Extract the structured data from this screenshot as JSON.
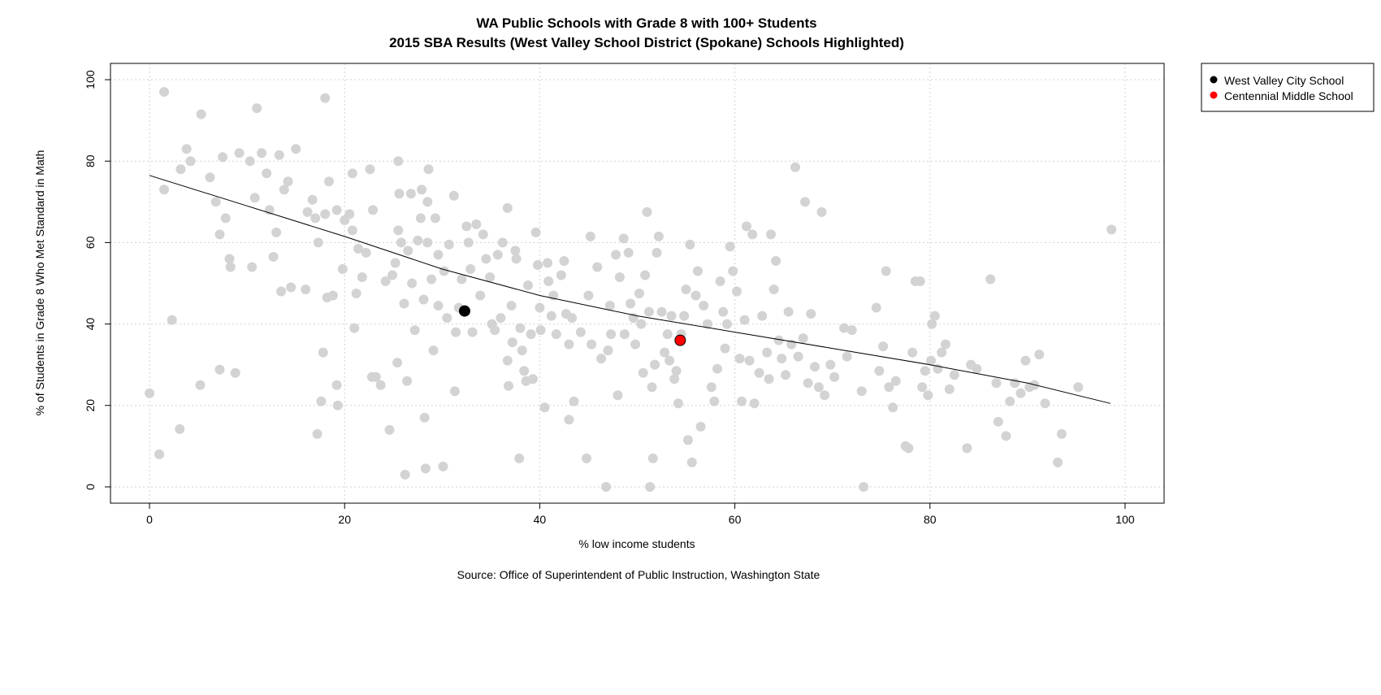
{
  "chart_data": {
    "type": "scatter",
    "title": "WA Public Schools with Grade 8 with 100+ Students",
    "subtitle": "2015 SBA Results (West Valley School District (Spokane) Schools Highlighted)",
    "xlabel": "% low income students",
    "ylabel": "% of Students in Grade 8 Who Met Standard in Math",
    "caption": "Source: Office of Superintendent of Public Instruction, Washington State",
    "xlim": [
      -4,
      104
    ],
    "ylim": [
      -4,
      104
    ],
    "x_ticks": [
      0,
      20,
      40,
      60,
      80,
      100
    ],
    "y_ticks": [
      0,
      20,
      40,
      60,
      80,
      100
    ],
    "grid": true,
    "legend_position": "outside-top-right",
    "legend": [
      {
        "label": "West Valley City School",
        "color": "#000000"
      },
      {
        "label": "Centennial Middle School",
        "color": "#ff0000"
      }
    ],
    "trend_line": [
      [
        0,
        76.5
      ],
      [
        10,
        69
      ],
      [
        20,
        61.5
      ],
      [
        30,
        53.5
      ],
      [
        40,
        47
      ],
      [
        50,
        42
      ],
      [
        60,
        38
      ],
      [
        70,
        34
      ],
      [
        80,
        30
      ],
      [
        90,
        25.5
      ],
      [
        98.5,
        20.5
      ]
    ],
    "highlighted": [
      {
        "label": "West Valley City School",
        "x": 32.3,
        "y": 43.2,
        "color": "#000000"
      },
      {
        "label": "Centennial Middle School",
        "x": 54.4,
        "y": 36,
        "color": "#ff0000"
      }
    ],
    "background_color": "#d3d3d3",
    "background_points": [
      [
        0,
        23
      ],
      [
        1,
        8
      ],
      [
        1.5,
        73
      ],
      [
        1.5,
        97
      ],
      [
        2.3,
        41
      ],
      [
        3.1,
        14.2
      ],
      [
        3.2,
        78
      ],
      [
        3.8,
        83
      ],
      [
        4.2,
        80
      ],
      [
        5.2,
        25
      ],
      [
        5.3,
        91.5
      ],
      [
        6.2,
        76
      ],
      [
        6.8,
        70
      ],
      [
        7.2,
        62
      ],
      [
        7.2,
        28.8
      ],
      [
        7.5,
        81
      ],
      [
        7.8,
        66
      ],
      [
        8.2,
        56
      ],
      [
        8.3,
        54
      ],
      [
        8.8,
        28
      ],
      [
        9.2,
        82
      ],
      [
        10.3,
        80
      ],
      [
        10.5,
        54
      ],
      [
        10.8,
        71
      ],
      [
        11,
        93
      ],
      [
        11.5,
        82
      ],
      [
        12,
        77
      ],
      [
        12.3,
        68
      ],
      [
        12.7,
        56.5
      ],
      [
        13,
        62.5
      ],
      [
        13.3,
        81.5
      ],
      [
        13.5,
        48
      ],
      [
        13.8,
        73
      ],
      [
        14.2,
        75
      ],
      [
        14.5,
        49
      ],
      [
        15,
        83
      ],
      [
        16,
        48.5
      ],
      [
        16.2,
        67.5
      ],
      [
        16.7,
        70.5
      ],
      [
        17,
        66
      ],
      [
        17.2,
        13
      ],
      [
        17.3,
        60
      ],
      [
        17.6,
        21
      ],
      [
        17.8,
        33
      ],
      [
        18,
        67
      ],
      [
        18,
        95.5
      ],
      [
        18.2,
        46.5
      ],
      [
        18.4,
        75
      ],
      [
        18.8,
        47
      ],
      [
        19.2,
        68
      ],
      [
        19.2,
        25
      ],
      [
        19.3,
        20
      ],
      [
        19.8,
        53.5
      ],
      [
        20,
        65.5
      ],
      [
        20.5,
        67
      ],
      [
        20.8,
        77
      ],
      [
        20.8,
        63
      ],
      [
        21,
        39
      ],
      [
        21.2,
        47.5
      ],
      [
        21.4,
        58.5
      ],
      [
        21.8,
        51.5
      ],
      [
        22.2,
        57.5
      ],
      [
        22.6,
        78
      ],
      [
        22.9,
        68
      ],
      [
        22.8,
        27
      ],
      [
        23.2,
        27
      ],
      [
        23.7,
        25
      ],
      [
        24.2,
        50.5
      ],
      [
        24.6,
        14
      ],
      [
        24.9,
        52
      ],
      [
        25.2,
        55
      ],
      [
        25.4,
        30.5
      ],
      [
        25.5,
        63
      ],
      [
        25.5,
        80
      ],
      [
        25.6,
        72
      ],
      [
        25.8,
        60
      ],
      [
        26.1,
        45
      ],
      [
        26.2,
        3
      ],
      [
        26.4,
        26
      ],
      [
        26.5,
        58
      ],
      [
        26.8,
        72
      ],
      [
        26.9,
        50
      ],
      [
        27.2,
        38.5
      ],
      [
        27.5,
        60.5
      ],
      [
        27.8,
        66
      ],
      [
        27.9,
        73
      ],
      [
        28.1,
        46
      ],
      [
        28.2,
        17
      ],
      [
        28.3,
        4.5
      ],
      [
        28.5,
        60
      ],
      [
        28.5,
        70
      ],
      [
        28.6,
        78
      ],
      [
        28.9,
        51
      ],
      [
        29.1,
        33.5
      ],
      [
        29.3,
        66
      ],
      [
        29.6,
        57
      ],
      [
        29.6,
        44.5
      ],
      [
        30.1,
        5
      ],
      [
        30.2,
        53
      ],
      [
        30.5,
        41.5
      ],
      [
        30.7,
        59.5
      ],
      [
        31.2,
        71.5
      ],
      [
        31.3,
        23.5
      ],
      [
        31.4,
        38
      ],
      [
        31.7,
        44
      ],
      [
        32,
        51
      ],
      [
        32.5,
        64
      ],
      [
        32.7,
        60
      ],
      [
        32.9,
        53.5
      ],
      [
        33.1,
        38
      ],
      [
        33.5,
        64.5
      ],
      [
        33.9,
        47
      ],
      [
        34.2,
        62
      ],
      [
        34.5,
        56
      ],
      [
        34.9,
        51.5
      ],
      [
        35.1,
        40
      ],
      [
        35.4,
        38.5
      ],
      [
        35.7,
        57
      ],
      [
        36,
        41.5
      ],
      [
        36.2,
        60
      ],
      [
        36.7,
        68.5
      ],
      [
        36.7,
        31
      ],
      [
        36.8,
        24.8
      ],
      [
        37.1,
        44.5
      ],
      [
        37.2,
        35.5
      ],
      [
        37.5,
        58
      ],
      [
        37.6,
        56
      ],
      [
        37.9,
        7
      ],
      [
        38,
        39
      ],
      [
        38.2,
        33.5
      ],
      [
        38.4,
        28.5
      ],
      [
        38.6,
        26
      ],
      [
        38.8,
        49.5
      ],
      [
        39.1,
        37.5
      ],
      [
        39.3,
        26.5
      ],
      [
        39.6,
        62.5
      ],
      [
        39.8,
        54.5
      ],
      [
        40,
        44
      ],
      [
        40.1,
        38.5
      ],
      [
        40.5,
        19.5
      ],
      [
        40.8,
        55
      ],
      [
        40.9,
        50.5
      ],
      [
        41.2,
        42
      ],
      [
        41.4,
        47
      ],
      [
        41.7,
        37.5
      ],
      [
        42.2,
        52
      ],
      [
        42.5,
        55.5
      ],
      [
        42.7,
        42.5
      ],
      [
        43,
        16.5
      ],
      [
        43,
        35
      ],
      [
        43.3,
        41.5
      ],
      [
        43.5,
        21
      ],
      [
        44.2,
        38
      ],
      [
        44.8,
        7
      ],
      [
        45,
        47
      ],
      [
        45.2,
        61.5
      ],
      [
        45.3,
        35
      ],
      [
        45.9,
        54
      ],
      [
        46.3,
        31.5
      ],
      [
        46.8,
        0
      ],
      [
        47,
        33.5
      ],
      [
        47.2,
        44.5
      ],
      [
        47.3,
        37.5
      ],
      [
        47.8,
        57
      ],
      [
        48,
        22.5
      ],
      [
        48.2,
        51.5
      ],
      [
        48.6,
        61
      ],
      [
        48.7,
        37.5
      ],
      [
        49.1,
        57.5
      ],
      [
        49.3,
        45
      ],
      [
        49.6,
        41.5
      ],
      [
        49.8,
        35
      ],
      [
        50.2,
        47.5
      ],
      [
        50.4,
        40
      ],
      [
        50.6,
        28
      ],
      [
        50.8,
        52
      ],
      [
        51,
        67.5
      ],
      [
        51.2,
        43
      ],
      [
        51.3,
        0
      ],
      [
        51.5,
        24.5
      ],
      [
        51.6,
        7
      ],
      [
        51.8,
        30
      ],
      [
        52,
        57.5
      ],
      [
        52.2,
        61.5
      ],
      [
        52.5,
        43
      ],
      [
        52.8,
        33
      ],
      [
        53.1,
        37.5
      ],
      [
        53.3,
        31
      ],
      [
        53.5,
        42
      ],
      [
        53.8,
        26.5
      ],
      [
        54,
        28.5
      ],
      [
        54.2,
        20.5
      ],
      [
        54.5,
        37.5
      ],
      [
        54.8,
        42
      ],
      [
        55,
        48.5
      ],
      [
        55.2,
        11.5
      ],
      [
        55.4,
        59.5
      ],
      [
        55.6,
        6
      ],
      [
        56,
        47
      ],
      [
        56.2,
        53
      ],
      [
        56.5,
        14.8
      ],
      [
        56.8,
        44.5
      ],
      [
        57.2,
        40
      ],
      [
        57.6,
        24.5
      ],
      [
        57.9,
        21
      ],
      [
        58.2,
        29
      ],
      [
        58.5,
        50.5
      ],
      [
        58.8,
        43
      ],
      [
        59,
        34
      ],
      [
        59.2,
        40
      ],
      [
        59.5,
        59
      ],
      [
        59.8,
        53
      ],
      [
        60.2,
        48
      ],
      [
        60.5,
        31.5
      ],
      [
        60.7,
        21
      ],
      [
        61,
        41
      ],
      [
        61.2,
        64
      ],
      [
        61.5,
        31
      ],
      [
        61.8,
        62
      ],
      [
        62,
        20.5
      ],
      [
        62.5,
        28
      ],
      [
        62.8,
        42
      ],
      [
        63.3,
        33
      ],
      [
        63.5,
        26.5
      ],
      [
        63.7,
        62
      ],
      [
        64,
        48.5
      ],
      [
        64.2,
        55.5
      ],
      [
        64.5,
        36
      ],
      [
        64.8,
        31.5
      ],
      [
        65.2,
        27.5
      ],
      [
        65.5,
        43
      ],
      [
        65.8,
        35
      ],
      [
        66.2,
        78.5
      ],
      [
        66.5,
        32
      ],
      [
        67,
        36.5
      ],
      [
        67.2,
        70
      ],
      [
        67.5,
        25.5
      ],
      [
        67.8,
        42.5
      ],
      [
        68.2,
        29.5
      ],
      [
        68.6,
        24.5
      ],
      [
        68.9,
        67.5
      ],
      [
        69.2,
        22.5
      ],
      [
        69.8,
        30
      ],
      [
        70.2,
        27
      ],
      [
        71.2,
        39
      ],
      [
        71.5,
        32
      ],
      [
        72,
        38.5
      ],
      [
        73,
        23.5
      ],
      [
        73.2,
        0
      ],
      [
        74.5,
        44
      ],
      [
        74.8,
        28.5
      ],
      [
        75.2,
        34.5
      ],
      [
        75.5,
        53
      ],
      [
        75.8,
        24.5
      ],
      [
        76.2,
        19.5
      ],
      [
        76.5,
        26
      ],
      [
        77.5,
        10
      ],
      [
        77.8,
        9.5
      ],
      [
        78.2,
        33
      ],
      [
        78.5,
        50.5
      ],
      [
        79,
        50.5
      ],
      [
        79.2,
        24.5
      ],
      [
        79.5,
        28.5
      ],
      [
        79.8,
        22.5
      ],
      [
        80.1,
        31
      ],
      [
        80.2,
        40
      ],
      [
        80.5,
        42
      ],
      [
        80.8,
        29
      ],
      [
        81.2,
        33
      ],
      [
        81.6,
        35
      ],
      [
        82,
        24
      ],
      [
        82.5,
        27.5
      ],
      [
        83.8,
        9.5
      ],
      [
        84.2,
        30
      ],
      [
        84.8,
        29
      ],
      [
        86.2,
        51
      ],
      [
        86.8,
        25.5
      ],
      [
        87,
        16
      ],
      [
        87.8,
        12.5
      ],
      [
        88.2,
        21
      ],
      [
        88.7,
        25.5
      ],
      [
        89.3,
        23
      ],
      [
        89.8,
        31
      ],
      [
        90.2,
        24.5
      ],
      [
        90.7,
        25
      ],
      [
        91.2,
        32.5
      ],
      [
        91.8,
        20.5
      ],
      [
        93.1,
        6
      ],
      [
        93.5,
        13
      ],
      [
        95.2,
        24.5
      ],
      [
        98.6,
        63.2
      ]
    ]
  }
}
